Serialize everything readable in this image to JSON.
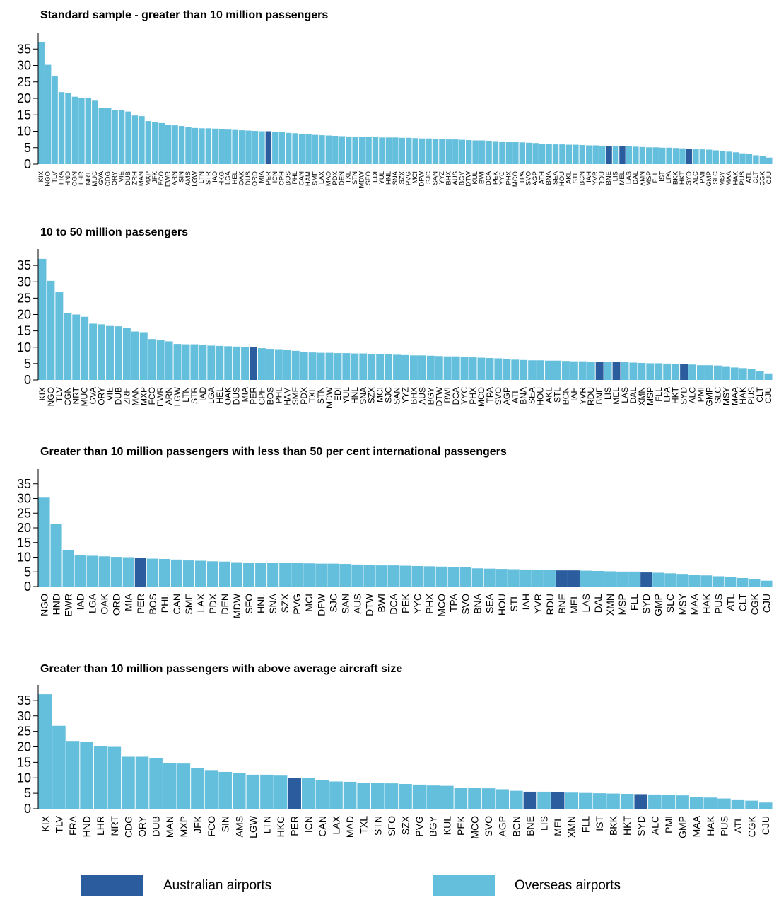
{
  "colors": {
    "australian": "#2A5C9E",
    "overseas": "#64BFDD",
    "axis": "#000000"
  },
  "legend": {
    "australian_label": "Australian airports",
    "overseas_label": "Overseas airports"
  },
  "chart_data": [
    {
      "type": "bar",
      "title": "Standard sample - greater than 10 million passengers",
      "ylim": [
        0,
        40
      ],
      "yticks": [
        0,
        5,
        10,
        15,
        20,
        25,
        30,
        35
      ],
      "categories": [
        "KIX",
        "NGO",
        "TLV",
        "FRA",
        "HND",
        "CGN",
        "LHR",
        "NRT",
        "MUC",
        "GVA",
        "CDG",
        "ORY",
        "VIE",
        "DUB",
        "ZRH",
        "MAN",
        "MXP",
        "JFK",
        "FCO",
        "EWR",
        "ARN",
        "SIN",
        "AMS",
        "LGW",
        "LTN",
        "STR",
        "IAD",
        "HKG",
        "LGA",
        "HEL",
        "OAK",
        "DUS",
        "ORD",
        "MIA",
        "PER",
        "ICN",
        "CPH",
        "BOS",
        "PHL",
        "CAN",
        "HAM",
        "SMF",
        "LAX",
        "MAD",
        "PDX",
        "DEN",
        "TXL",
        "STN",
        "MDW",
        "SFO",
        "EDI",
        "YUL",
        "HNL",
        "SNA",
        "SZX",
        "PVG",
        "MCI",
        "DFW",
        "SJC",
        "SAN",
        "YYZ",
        "BHX",
        "AUS",
        "BGY",
        "DTW",
        "KUL",
        "BWI",
        "DCA",
        "PEK",
        "YYC",
        "PHX",
        "MCO",
        "TPA",
        "SVO",
        "AGP",
        "ATH",
        "BNA",
        "SEA",
        "HOU",
        "AKL",
        "STL",
        "BCN",
        "IAH",
        "YVR",
        "RDU",
        "BNE",
        "LIS",
        "MEL",
        "LAS",
        "DAL",
        "XMN",
        "MSP",
        "FLL",
        "IST",
        "LPA",
        "BKK",
        "HKT",
        "SYD",
        "ALC",
        "PMI",
        "GMP",
        "SLC",
        "MSY",
        "MAA",
        "HAK",
        "PUS",
        "ATL",
        "CLT",
        "CGK",
        "CJU"
      ],
      "values": [
        37,
        30.2,
        26.8,
        21.9,
        21.6,
        20.5,
        20.2,
        20,
        19.3,
        17.2,
        17,
        16.5,
        16.4,
        16,
        14.8,
        14.6,
        13.1,
        12.8,
        12.5,
        11.9,
        11.8,
        11.6,
        11.3,
        11,
        10.9,
        10.9,
        10.8,
        10.7,
        10.5,
        10.4,
        10.3,
        10.2,
        10.1,
        10,
        10,
        9.9,
        9.7,
        9.5,
        9.4,
        9.2,
        9.1,
        8.9,
        8.8,
        8.7,
        8.6,
        8.5,
        8.4,
        8.3,
        8.3,
        8.2,
        8.2,
        8.1,
        8.1,
        8.1,
        8,
        8,
        7.9,
        7.8,
        7.8,
        7.7,
        7.6,
        7.5,
        7.5,
        7.4,
        7.3,
        7.2,
        7.2,
        7.1,
        7,
        6.9,
        6.8,
        6.7,
        6.6,
        6.5,
        6.4,
        6.2,
        6.1,
        6,
        6,
        5.9,
        5.9,
        5.8,
        5.7,
        5.7,
        5.6,
        5.5,
        5.5,
        5.5,
        5.4,
        5.3,
        5.2,
        5.1,
        5.1,
        5,
        5,
        4.9,
        4.8,
        4.7,
        4.5,
        4.5,
        4.4,
        4.2,
        4.1,
        3.8,
        3.6,
        3.3,
        3.1,
        2.7,
        2.4,
        2
      ],
      "australian": [
        "PER",
        "BNE",
        "MEL",
        "SYD"
      ]
    },
    {
      "type": "bar",
      "title": "10 to 50 million passengers",
      "ylim": [
        0,
        40
      ],
      "yticks": [
        0,
        5,
        10,
        15,
        20,
        25,
        30,
        35
      ],
      "categories": [
        "KIX",
        "NGO",
        "TLV",
        "CGN",
        "NRT",
        "MUC",
        "GVA",
        "ORY",
        "VIE",
        "DUB",
        "ZRH",
        "MAN",
        "MXP",
        "FCO",
        "EWR",
        "ARN",
        "LGW",
        "LTN",
        "STR",
        "IAD",
        "LGA",
        "HEL",
        "OAK",
        "DUS",
        "MIA",
        "PER",
        "CPH",
        "BOS",
        "PHL",
        "HAM",
        "SMF",
        "PDX",
        "TXL",
        "STN",
        "MDW",
        "EDI",
        "YUL",
        "HNL",
        "SNA",
        "SZX",
        "MCI",
        "SJC",
        "SAN",
        "YYZ",
        "BHX",
        "AUS",
        "BGY",
        "DTW",
        "BWI",
        "DCA",
        "YYC",
        "PHX",
        "MCO",
        "TPA",
        "SVO",
        "AGP",
        "ATH",
        "BNA",
        "SEA",
        "HOU",
        "AKL",
        "STL",
        "BCN",
        "IAH",
        "YVR",
        "RDU",
        "BNE",
        "LIS",
        "MEL",
        "LAS",
        "DAL",
        "XMN",
        "MSP",
        "FLL",
        "LPA",
        "HKT",
        "SYD",
        "ALC",
        "PMI",
        "GMP",
        "SLC",
        "MSY",
        "MAA",
        "HAK",
        "PUS",
        "CLT",
        "CJU"
      ],
      "values": [
        37,
        30.3,
        26.8,
        20.5,
        20,
        19.3,
        17.2,
        17,
        16.5,
        16.4,
        16,
        14.8,
        14.6,
        12.5,
        12.3,
        11.8,
        11,
        10.9,
        10.9,
        10.8,
        10.5,
        10.4,
        10.3,
        10.2,
        10,
        10,
        9.7,
        9.5,
        9.4,
        9.1,
        8.9,
        8.6,
        8.4,
        8.3,
        8.3,
        8.2,
        8.2,
        8.1,
        8.1,
        8,
        7.9,
        7.8,
        7.7,
        7.6,
        7.5,
        7.5,
        7.4,
        7.3,
        7.2,
        7.2,
        7,
        6.9,
        6.8,
        6.7,
        6.6,
        6.5,
        6.2,
        6.1,
        6,
        6,
        5.9,
        5.9,
        5.8,
        5.7,
        5.7,
        5.6,
        5.5,
        5.5,
        5.5,
        5.4,
        5.3,
        5.2,
        5.1,
        5.1,
        5,
        4.9,
        4.8,
        4.7,
        4.5,
        4.5,
        4.4,
        4.2,
        3.8,
        3.6,
        3.3,
        2.7,
        2
      ],
      "australian": [
        "PER",
        "BNE",
        "MEL",
        "SYD"
      ]
    },
    {
      "type": "bar",
      "title": "Greater than 10 million passengers with less than 50 per cent international passengers",
      "ylim": [
        0,
        40
      ],
      "yticks": [
        0,
        5,
        10,
        15,
        20,
        25,
        30,
        35
      ],
      "categories": [
        "NGO",
        "HND",
        "EWR",
        "IAD",
        "LGA",
        "OAK",
        "ORD",
        "MIA",
        "PER",
        "BOS",
        "PHL",
        "CAN",
        "SMF",
        "LAX",
        "PDX",
        "DEN",
        "MDW",
        "SFO",
        "HNL",
        "SNA",
        "SZX",
        "PVG",
        "MCI",
        "DFW",
        "SJC",
        "SAN",
        "AUS",
        "DTW",
        "BWI",
        "DCA",
        "PEK",
        "YYC",
        "PHX",
        "MCO",
        "TPA",
        "SVO",
        "BNA",
        "SEA",
        "HOU",
        "STL",
        "IAH",
        "YVR",
        "RDU",
        "BNE",
        "MEL",
        "LAS",
        "DAL",
        "XMN",
        "MSP",
        "FLL",
        "SYD",
        "GMP",
        "SLC",
        "MSY",
        "MAA",
        "HAK",
        "PUS",
        "ATL",
        "CLT",
        "CGK",
        "CJU"
      ],
      "values": [
        30.3,
        21.4,
        12.3,
        10.8,
        10.5,
        10.3,
        10.1,
        10,
        9.7,
        9.5,
        9.4,
        9.2,
        8.9,
        8.8,
        8.6,
        8.5,
        8.3,
        8.2,
        8.1,
        8.1,
        8,
        8,
        7.9,
        7.8,
        7.8,
        7.7,
        7.5,
        7.3,
        7.2,
        7.2,
        7.1,
        7,
        6.9,
        6.8,
        6.7,
        6.6,
        6.2,
        6.1,
        6,
        5.9,
        5.8,
        5.7,
        5.6,
        5.5,
        5.5,
        5.4,
        5.3,
        5.2,
        5.1,
        5.1,
        4.8,
        4.7,
        4.5,
        4.3,
        4.1,
        3.8,
        3.5,
        3.2,
        2.9,
        2.5,
        2
      ],
      "australian": [
        "PER",
        "BNE",
        "MEL",
        "SYD"
      ]
    },
    {
      "type": "bar",
      "title": "Greater than 10 million passengers with above average aircraft size",
      "ylim": [
        0,
        40
      ],
      "yticks": [
        0,
        5,
        10,
        15,
        20,
        25,
        30,
        35
      ],
      "categories": [
        "KIX",
        "TLV",
        "FRA",
        "HND",
        "LHR",
        "NRT",
        "CDG",
        "ORY",
        "DUB",
        "MAN",
        "MXP",
        "JFK",
        "FCO",
        "SIN",
        "AMS",
        "LGW",
        "LTN",
        "HKG",
        "PER",
        "ICN",
        "CAN",
        "LAX",
        "MAD",
        "TXL",
        "STN",
        "SFO",
        "SZX",
        "PVG",
        "BGY",
        "KUL",
        "PEK",
        "MCO",
        "SVO",
        "AGP",
        "BCN",
        "BNE",
        "LIS",
        "MEL",
        "XMN",
        "FLL",
        "IST",
        "BKK",
        "HKT",
        "SYD",
        "ALC",
        "PMI",
        "GMP",
        "MAA",
        "HAK",
        "PUS",
        "ATL",
        "CGK",
        "CJU"
      ],
      "values": [
        37,
        26.8,
        21.9,
        21.6,
        20.2,
        20,
        16.8,
        16.8,
        16.4,
        14.8,
        14.6,
        13.1,
        12.5,
        11.9,
        11.6,
        11,
        11,
        10.7,
        10,
        9.9,
        9.2,
        8.8,
        8.7,
        8.4,
        8.3,
        8.2,
        8,
        7.8,
        7.5,
        7.4,
        6.8,
        6.7,
        6.6,
        6.3,
        5.8,
        5.5,
        5.5,
        5.4,
        5.2,
        5.1,
        5,
        4.9,
        4.8,
        4.7,
        4.6,
        4.4,
        4.3,
        3.8,
        3.6,
        3.3,
        3,
        2.6,
        2
      ],
      "australian": [
        "PER",
        "BNE",
        "MEL",
        "SYD"
      ]
    }
  ]
}
